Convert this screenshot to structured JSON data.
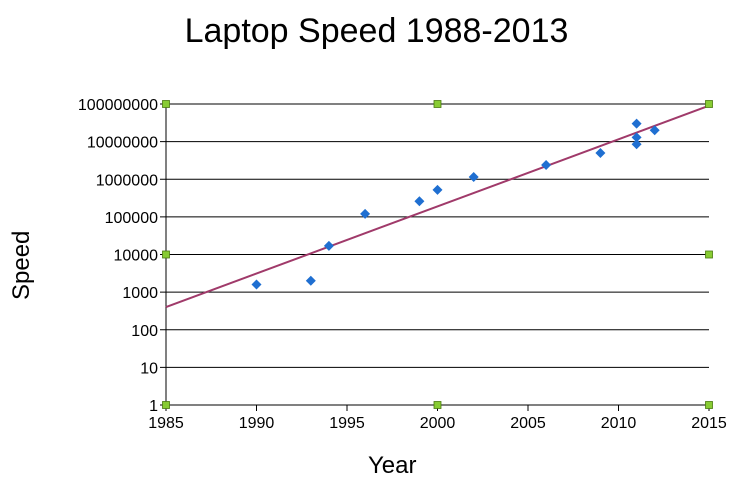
{
  "chart_data": {
    "type": "scatter",
    "title": "Laptop Speed 1988-2013",
    "xlabel": "Year",
    "ylabel": "Speed",
    "yscale": "log",
    "xlim": [
      1985,
      2015
    ],
    "ylim": [
      1,
      100000000
    ],
    "x_ticks": [
      "1985",
      "1990",
      "1995",
      "2000",
      "2005",
      "2010",
      "2015"
    ],
    "y_ticks": [
      "1",
      "10",
      "100",
      "1000",
      "10000",
      "100000",
      "1000000",
      "10000000",
      "100000000"
    ],
    "grid": "horizontal",
    "colors": {
      "points": "#1f6fd1",
      "trend": "#a03a6a",
      "corner_markers": "#88cc33"
    },
    "series": [
      {
        "type": "scatter",
        "points": [
          [
            1990,
            1600
          ],
          [
            1993,
            2000
          ],
          [
            1994,
            17000
          ],
          [
            1996,
            120000
          ],
          [
            1999,
            260000
          ],
          [
            2000,
            520000
          ],
          [
            2002,
            1150000
          ],
          [
            2006,
            2400000
          ],
          [
            2009,
            5000000
          ],
          [
            2011,
            30000000
          ],
          [
            2011,
            13000000
          ],
          [
            2011,
            8500000
          ],
          [
            2012,
            20000000
          ]
        ]
      },
      {
        "type": "line",
        "points": [
          [
            1985,
            400
          ],
          [
            2015,
            90000000
          ]
        ]
      },
      {
        "type": "scatter",
        "points": [
          [
            1985,
            100000000
          ],
          [
            2000,
            100000000
          ],
          [
            2015,
            100000000
          ],
          [
            1985,
            10000
          ],
          [
            2015,
            10000
          ],
          [
            1985,
            1
          ],
          [
            2000,
            1
          ],
          [
            2015,
            1
          ]
        ]
      }
    ]
  }
}
